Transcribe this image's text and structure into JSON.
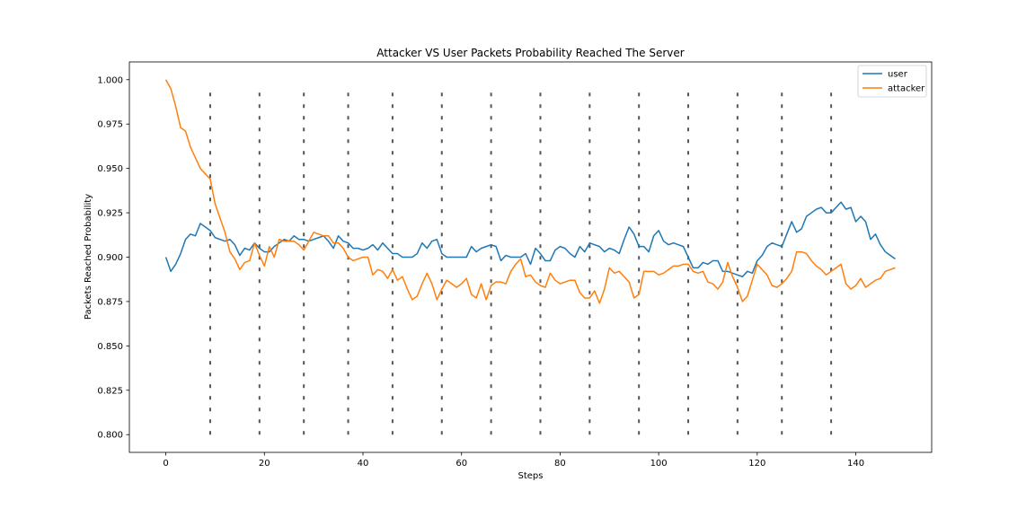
{
  "chart_data": {
    "type": "line",
    "title": "Attacker VS User Packets Probability Reached The Server",
    "xlabel": "Steps",
    "ylabel": "Packets Reached Probability",
    "xlim": [
      -7.4,
      155.4
    ],
    "ylim": [
      0.79,
      1.01
    ],
    "xticks": [
      0,
      20,
      40,
      60,
      80,
      100,
      120,
      140
    ],
    "yticks": [
      0.8,
      0.825,
      0.85,
      0.875,
      0.9,
      0.925,
      0.95,
      0.975,
      1.0
    ],
    "ytick_labels": [
      "0.800",
      "0.825",
      "0.850",
      "0.875",
      "0.900",
      "0.925",
      "0.950",
      "0.975",
      "1.000"
    ],
    "grid": false,
    "legend_position": "top-right",
    "vlines": {
      "x": [
        9,
        19,
        28,
        37,
        46,
        56,
        66,
        76,
        86,
        96,
        106,
        116,
        125,
        135
      ],
      "ymin": 0.8,
      "ymax": 0.993,
      "color": "#555555",
      "style": "dashed"
    },
    "series": [
      {
        "name": "user",
        "color": "#1f77b4",
        "x": [
          0,
          1,
          2,
          3,
          4,
          5,
          6,
          7,
          8,
          9,
          10,
          11,
          12,
          13,
          14,
          15,
          16,
          17,
          18,
          19,
          20,
          21,
          22,
          23,
          24,
          25,
          26,
          27,
          28,
          29,
          30,
          31,
          32,
          33,
          34,
          35,
          36,
          37,
          38,
          39,
          40,
          41,
          42,
          43,
          44,
          45,
          46,
          47,
          48,
          49,
          50,
          51,
          52,
          53,
          54,
          55,
          56,
          57,
          58,
          59,
          60,
          61,
          62,
          63,
          64,
          65,
          66,
          67,
          68,
          69,
          70,
          71,
          72,
          73,
          74,
          75,
          76,
          77,
          78,
          79,
          80,
          81,
          82,
          83,
          84,
          85,
          86,
          87,
          88,
          89,
          90,
          91,
          92,
          93,
          94,
          95,
          96,
          97,
          98,
          99,
          100,
          101,
          102,
          103,
          104,
          105,
          106,
          107,
          108,
          109,
          110,
          111,
          112,
          113,
          114,
          115,
          116,
          117,
          118,
          119,
          120,
          121,
          122,
          123,
          124,
          125,
          126,
          127,
          128,
          129,
          130,
          131,
          132,
          133,
          134,
          135,
          136,
          137,
          138,
          139,
          140,
          141,
          142,
          143,
          144,
          145,
          146,
          147,
          148
        ],
        "y": [
          0.9,
          0.892,
          0.896,
          0.902,
          0.91,
          0.913,
          0.912,
          0.919,
          0.917,
          0.915,
          0.911,
          0.91,
          0.909,
          0.91,
          0.907,
          0.901,
          0.905,
          0.904,
          0.908,
          0.905,
          0.903,
          0.903,
          0.906,
          0.908,
          0.91,
          0.909,
          0.912,
          0.91,
          0.91,
          0.909,
          0.91,
          0.911,
          0.912,
          0.909,
          0.905,
          0.912,
          0.909,
          0.908,
          0.905,
          0.905,
          0.904,
          0.905,
          0.907,
          0.904,
          0.908,
          0.905,
          0.902,
          0.902,
          0.9,
          0.9,
          0.9,
          0.902,
          0.908,
          0.905,
          0.909,
          0.91,
          0.902,
          0.9,
          0.9,
          0.9,
          0.9,
          0.9,
          0.906,
          0.903,
          0.905,
          0.906,
          0.907,
          0.906,
          0.898,
          0.901,
          0.9,
          0.9,
          0.9,
          0.902,
          0.896,
          0.905,
          0.902,
          0.898,
          0.898,
          0.904,
          0.906,
          0.905,
          0.902,
          0.9,
          0.906,
          0.903,
          0.908,
          0.907,
          0.906,
          0.903,
          0.905,
          0.904,
          0.902,
          0.91,
          0.917,
          0.913,
          0.906,
          0.906,
          0.903,
          0.912,
          0.915,
          0.909,
          0.907,
          0.908,
          0.907,
          0.906,
          0.9,
          0.894,
          0.894,
          0.897,
          0.896,
          0.898,
          0.898,
          0.892,
          0.892,
          0.891,
          0.89,
          0.889,
          0.892,
          0.891,
          0.898,
          0.901,
          0.906,
          0.908,
          0.907,
          0.906,
          0.913,
          0.92,
          0.914,
          0.916,
          0.923,
          0.925,
          0.927,
          0.928,
          0.925,
          0.925,
          0.928,
          0.931,
          0.927,
          0.928,
          0.92,
          0.923,
          0.92,
          0.91,
          0.913,
          0.907,
          0.903,
          0.901,
          0.899
        ]
      },
      {
        "name": "attacker",
        "color": "#ff7f0e",
        "x": [
          0,
          1,
          2,
          3,
          4,
          5,
          6,
          7,
          8,
          9,
          10,
          11,
          12,
          13,
          14,
          15,
          16,
          17,
          18,
          19,
          20,
          21,
          22,
          23,
          24,
          25,
          26,
          27,
          28,
          29,
          30,
          31,
          32,
          33,
          34,
          35,
          36,
          37,
          38,
          39,
          40,
          41,
          42,
          43,
          44,
          45,
          46,
          47,
          48,
          49,
          50,
          51,
          52,
          53,
          54,
          55,
          56,
          57,
          58,
          59,
          60,
          61,
          62,
          63,
          64,
          65,
          66,
          67,
          68,
          69,
          70,
          71,
          72,
          73,
          74,
          75,
          76,
          77,
          78,
          79,
          80,
          81,
          82,
          83,
          84,
          85,
          86,
          87,
          88,
          89,
          90,
          91,
          92,
          93,
          94,
          95,
          96,
          97,
          98,
          99,
          100,
          101,
          102,
          103,
          104,
          105,
          106,
          107,
          108,
          109,
          110,
          111,
          112,
          113,
          114,
          115,
          116,
          117,
          118,
          119,
          120,
          121,
          122,
          123,
          124,
          125,
          126,
          127,
          128,
          129,
          130,
          131,
          132,
          133,
          134,
          135,
          136,
          137,
          138,
          139,
          140,
          141,
          142,
          143,
          144,
          145,
          146,
          147,
          148
        ],
        "y": [
          1.0,
          0.995,
          0.985,
          0.973,
          0.971,
          0.962,
          0.956,
          0.95,
          0.947,
          0.944,
          0.93,
          0.922,
          0.914,
          0.903,
          0.899,
          0.893,
          0.897,
          0.898,
          0.908,
          0.901,
          0.895,
          0.906,
          0.9,
          0.91,
          0.909,
          0.909,
          0.909,
          0.907,
          0.904,
          0.909,
          0.914,
          0.913,
          0.912,
          0.912,
          0.908,
          0.908,
          0.905,
          0.9,
          0.898,
          0.899,
          0.9,
          0.9,
          0.89,
          0.893,
          0.892,
          0.888,
          0.893,
          0.887,
          0.889,
          0.882,
          0.876,
          0.878,
          0.885,
          0.891,
          0.885,
          0.876,
          0.882,
          0.887,
          0.885,
          0.883,
          0.885,
          0.888,
          0.879,
          0.877,
          0.885,
          0.876,
          0.884,
          0.886,
          0.886,
          0.885,
          0.892,
          0.896,
          0.899,
          0.889,
          0.89,
          0.886,
          0.884,
          0.883,
          0.891,
          0.887,
          0.885,
          0.886,
          0.887,
          0.887,
          0.88,
          0.877,
          0.877,
          0.881,
          0.874,
          0.882,
          0.894,
          0.891,
          0.892,
          0.889,
          0.886,
          0.877,
          0.879,
          0.892,
          0.892,
          0.892,
          0.89,
          0.891,
          0.893,
          0.895,
          0.895,
          0.896,
          0.896,
          0.892,
          0.891,
          0.892,
          0.886,
          0.885,
          0.882,
          0.886,
          0.897,
          0.889,
          0.883,
          0.875,
          0.878,
          0.887,
          0.896,
          0.893,
          0.89,
          0.884,
          0.883,
          0.885,
          0.888,
          0.892,
          0.903,
          0.903,
          0.902,
          0.898,
          0.895,
          0.893,
          0.89,
          0.892,
          0.894,
          0.896,
          0.885,
          0.882,
          0.884,
          0.888,
          0.883,
          0.885,
          0.887,
          0.888,
          0.892,
          0.893,
          0.894
        ]
      }
    ]
  }
}
